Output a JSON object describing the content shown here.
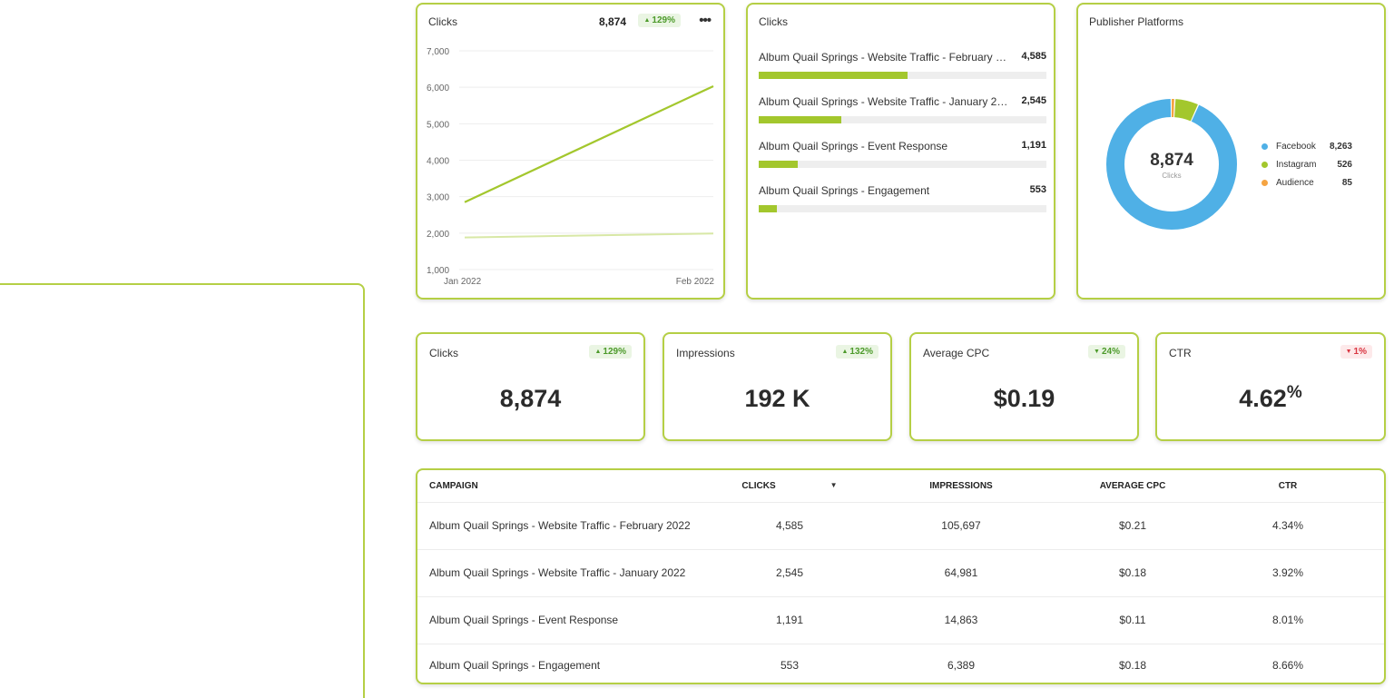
{
  "colors": {
    "accent_border": "#b5cf45",
    "bar_fill": "#a3c72d",
    "line_primary": "#a3c72d",
    "line_secondary": "#d8e8a6",
    "facebook": "#4fb0e6",
    "instagram": "#a3c72d",
    "audience": "#f5a442",
    "positive": "#4c9a2a",
    "negative": "#d93541"
  },
  "line_card": {
    "title": "Clicks",
    "total": "8,874",
    "change": "129%",
    "change_direction": "up",
    "menu_icon": "more-horizontal-icon"
  },
  "chart_data": [
    {
      "type": "line",
      "title": "Clicks",
      "x": [
        "Jan 2022",
        "Feb 2022"
      ],
      "series": [
        {
          "values": [
            2850,
            6030
          ]
        },
        {
          "values": [
            1880,
            1990
          ]
        }
      ],
      "ylim": [
        1000,
        7000
      ],
      "yticks": [
        "1,000",
        "2,000",
        "3,000",
        "4,000",
        "5,000",
        "6,000",
        "7,000"
      ],
      "ytick_values": [
        1000,
        2000,
        3000,
        4000,
        5000,
        6000,
        7000
      ],
      "grid": true
    },
    {
      "type": "bar",
      "title": "Clicks",
      "orientation": "horizontal",
      "categories": [
        "Album Quail Springs - Website Traffic - February 2022",
        "Album Quail Springs - Website Traffic - January 2022",
        "Album Quail Springs - Event Response",
        "Album Quail Springs - Engagement"
      ],
      "value_labels": [
        "4,585",
        "2,545",
        "1,191",
        "553"
      ],
      "values": [
        4585,
        2545,
        1191,
        553
      ],
      "xlim": [
        0,
        8874
      ]
    },
    {
      "type": "pie",
      "title": "Publisher Platforms",
      "center_value": "8,874",
      "center_label": "Clicks",
      "labels": [
        "Facebook",
        "Instagram",
        "Audience"
      ],
      "value_labels": [
        "8,263",
        "526",
        "85"
      ],
      "values": [
        8263,
        526,
        85
      ],
      "legend": "right"
    }
  ],
  "kpis": [
    {
      "title": "Clicks",
      "value": "8,874",
      "suffix": "",
      "change": "129%",
      "direction": "up"
    },
    {
      "title": "Impressions",
      "value": "192 K",
      "suffix": "",
      "change": "132%",
      "direction": "up"
    },
    {
      "title": "Average CPC",
      "value": "$0.19",
      "suffix": "",
      "change": "24%",
      "direction": "down"
    },
    {
      "title": "CTR",
      "value": "4.62",
      "suffix": "%",
      "change": "1%",
      "direction": "down"
    }
  ],
  "table": {
    "columns": [
      "CAMPAIGN",
      "CLICKS",
      "IMPRESSIONS",
      "AVERAGE CPC",
      "CTR"
    ],
    "sort_icon": "caret-down-icon",
    "rows": [
      [
        "Album Quail Springs - Website Traffic - February 2022",
        "4,585",
        "105,697",
        "$0.21",
        "4.34%"
      ],
      [
        "Album Quail Springs - Website Traffic - January 2022",
        "2,545",
        "64,981",
        "$0.18",
        "3.92%"
      ],
      [
        "Album Quail Springs - Event Response",
        "1,191",
        "14,863",
        "$0.11",
        "8.01%"
      ],
      [
        "Album Quail Springs - Engagement",
        "553",
        "6,389",
        "$0.18",
        "8.66%"
      ]
    ]
  }
}
